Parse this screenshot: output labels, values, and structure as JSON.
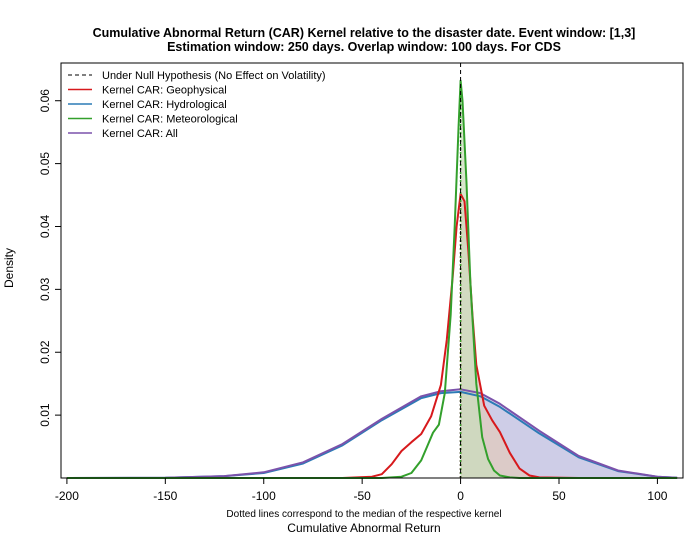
{
  "chart_data": {
    "type": "area",
    "title": "Cumulative Abnormal Return (CAR) Kernel relative to the disaster date. Event window: [1,3]",
    "subtitle": "Estimation window: 250 days. Overlap window: 100 days. For CDS",
    "xlabel": "Cumulative Abnormal Return",
    "xsublabel": "Dotted lines correspond to the median of the respective kernel",
    "ylabel": "Density",
    "xlim": [
      -203,
      113
    ],
    "ylim": [
      0,
      0.066
    ],
    "x_ticks": [
      -200,
      -150,
      -100,
      -50,
      0,
      50,
      100
    ],
    "x_tick_labels": [
      "-200",
      "-150",
      "-100",
      "-50",
      "0",
      "50",
      "100"
    ],
    "y_ticks": [
      0.01,
      0.02,
      0.03,
      0.04,
      0.05,
      0.06
    ],
    "y_tick_labels": [
      "0.01",
      "0.02",
      "0.03",
      "0.04",
      "0.05",
      "0.06"
    ],
    "null_line_x": 0,
    "legend_position": "top-left",
    "legend": [
      {
        "label": "Under Null Hypothesis (No Effect on Volatility)",
        "color": "#000000",
        "dashed": true
      },
      {
        "label": "Kernel CAR: Geophysical",
        "color": "#d7191c"
      },
      {
        "label": "Kernel CAR: Hydrological",
        "color": "#2c7bb6"
      },
      {
        "label": "Kernel CAR: Meteorological",
        "color": "#33a02c"
      },
      {
        "label": "Kernel CAR: All",
        "color": "#7b52ab"
      }
    ],
    "series": [
      {
        "name": "Kernel CAR: Hydrological",
        "color": "#2c7bb6",
        "fill": "#c9cde4",
        "median": 0,
        "x": [
          -200,
          -150,
          -120,
          -100,
          -80,
          -60,
          -40,
          -20,
          -10,
          0,
          10,
          20,
          40,
          60,
          80,
          100,
          110
        ],
        "y": [
          0,
          3e-05,
          0.0003,
          0.0008,
          0.0023,
          0.0052,
          0.0092,
          0.0127,
          0.0135,
          0.0137,
          0.013,
          0.0113,
          0.0071,
          0.0033,
          0.0011,
          0.0002,
          5e-05
        ]
      },
      {
        "name": "Kernel CAR: All",
        "color": "#7b52ab",
        "fill": "#cbc8e6",
        "median": 0,
        "x": [
          -200,
          -150,
          -120,
          -100,
          -80,
          -60,
          -40,
          -20,
          -10,
          0,
          10,
          20,
          40,
          60,
          80,
          100,
          110
        ],
        "y": [
          0,
          3e-05,
          0.0003,
          0.0009,
          0.0025,
          0.0054,
          0.0094,
          0.013,
          0.0138,
          0.0141,
          0.0135,
          0.0118,
          0.0075,
          0.0035,
          0.0012,
          0.0002,
          5e-05
        ]
      },
      {
        "name": "Kernel CAR: Geophysical",
        "color": "#d7191c",
        "fill": "#e0c9be",
        "median": 0,
        "x": [
          -200,
          -60,
          -45,
          -40,
          -35,
          -30,
          -25,
          -20,
          -15,
          -10,
          -7,
          -4,
          -2,
          0,
          2,
          4,
          6,
          8,
          12,
          16,
          20,
          25,
          30,
          35,
          40,
          60,
          110
        ],
        "y": [
          0,
          0,
          0.0002,
          0.0006,
          0.0022,
          0.0043,
          0.0057,
          0.007,
          0.0098,
          0.0148,
          0.022,
          0.032,
          0.04,
          0.0452,
          0.044,
          0.036,
          0.026,
          0.018,
          0.0115,
          0.0092,
          0.0073,
          0.004,
          0.0015,
          0.0004,
          0.0001,
          0,
          0
        ]
      },
      {
        "name": "Kernel CAR: Meteorological",
        "color": "#33a02c",
        "fill": "#cbdcbc",
        "median": 0,
        "x": [
          -200,
          -40,
          -30,
          -25,
          -20,
          -17,
          -14,
          -11,
          -8,
          -5,
          -3,
          -1,
          0,
          1,
          3,
          5,
          8,
          11,
          14,
          17,
          20,
          25,
          30,
          110
        ],
        "y": [
          0,
          0,
          0.0002,
          0.0008,
          0.0028,
          0.005,
          0.0072,
          0.0085,
          0.0135,
          0.026,
          0.04,
          0.056,
          0.0632,
          0.06,
          0.047,
          0.031,
          0.015,
          0.0065,
          0.003,
          0.0012,
          0.0004,
          0.0001,
          0,
          0
        ]
      }
    ]
  }
}
